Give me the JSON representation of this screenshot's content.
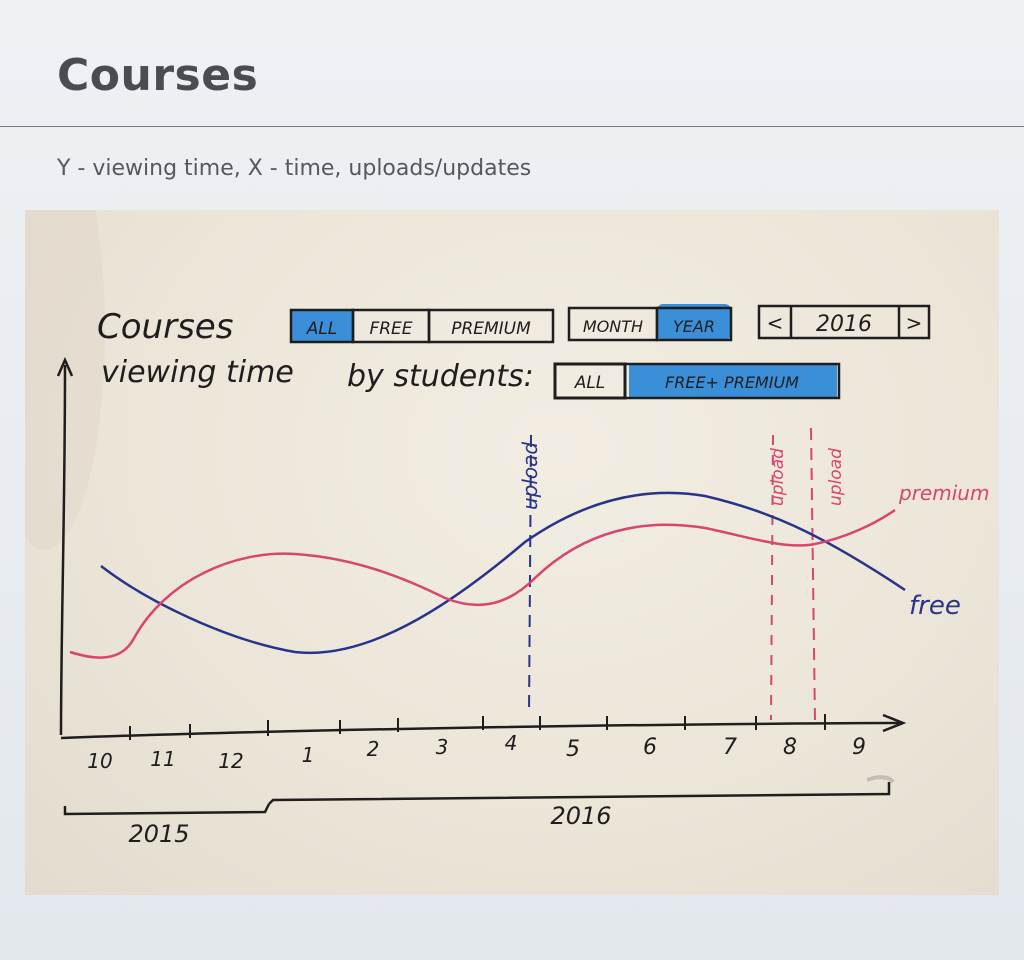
{
  "slide": {
    "title": "Courses",
    "subtitle": "Y - viewing time, X - time, uploads/updates"
  },
  "sketch": {
    "heading_line1": "Courses",
    "heading_line2": "viewing time",
    "by_students_label": "by students:",
    "course_filter": {
      "options": [
        "ALL",
        "FREE",
        "PREMIUM"
      ],
      "selected": "ALL"
    },
    "period_toggle": {
      "options": [
        "MONTH",
        "YEAR"
      ],
      "selected": "YEAR"
    },
    "year_nav": {
      "prev": "<",
      "year": "2016",
      "next": ">"
    },
    "student_filter": {
      "options": [
        "ALL",
        "FREE+ PREMIUM"
      ],
      "selected": "FREE+ PREMIUM"
    },
    "highlight_color": "#3a8fd8",
    "x_ticks": [
      "10",
      "11",
      "12",
      "1",
      "2",
      "3",
      "4",
      "5",
      "6",
      "7",
      "8",
      "9"
    ],
    "year_labels": [
      "2015",
      "2016"
    ],
    "series": [
      {
        "name": "free",
        "color": "#27348a"
      },
      {
        "name": "premium",
        "color": "#d8456e"
      }
    ],
    "upload_markers": [
      {
        "label": "upload",
        "color": "#27348a"
      },
      {
        "label": "upload",
        "color": "#d8456e"
      },
      {
        "label": "upload",
        "color": "#d8456e"
      }
    ]
  }
}
